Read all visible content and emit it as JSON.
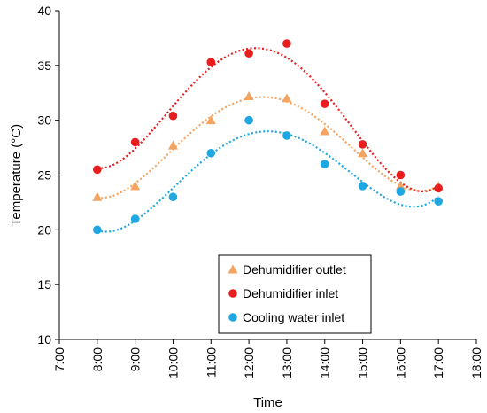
{
  "chart_data": {
    "type": "scatter",
    "xlabel": "Time",
    "ylabel": "Temperature (°C)",
    "xlim": [
      "7:00",
      "18:00"
    ],
    "ylim": [
      10,
      40
    ],
    "x_ticks": [
      "7:00",
      "8:00",
      "9:00",
      "10:00",
      "11:00",
      "12:00",
      "13:00",
      "14:00",
      "15:00",
      "16:00",
      "17:00",
      "18:00"
    ],
    "y_ticks": [
      "10",
      "15",
      "20",
      "25",
      "30",
      "35",
      "40"
    ],
    "grid": false,
    "trendline": "polynomial (dotted)",
    "legend_position": "bottom-center",
    "x": [
      "8:00",
      "9:00",
      "10:00",
      "11:00",
      "12:00",
      "13:00",
      "14:00",
      "15:00",
      "16:00",
      "17:00"
    ],
    "series": [
      {
        "name": "Dehumidifier outlet",
        "marker": "triangle",
        "color": "#F4A460",
        "values": [
          23.0,
          24.0,
          27.7,
          30.0,
          32.2,
          32.0,
          29.0,
          27.0,
          24.0,
          24.0
        ]
      },
      {
        "name": "Dehumidifier inlet",
        "marker": "circle",
        "color": "#E81E1E",
        "values": [
          25.5,
          28.0,
          30.4,
          35.3,
          36.1,
          37.0,
          31.5,
          27.8,
          25.0,
          23.8
        ]
      },
      {
        "name": "Cooling water inlet",
        "marker": "circle",
        "color": "#1EA7E0",
        "values": [
          20.0,
          21.0,
          23.0,
          27.0,
          30.0,
          28.6,
          26.0,
          24.0,
          23.5,
          22.6
        ]
      }
    ]
  }
}
